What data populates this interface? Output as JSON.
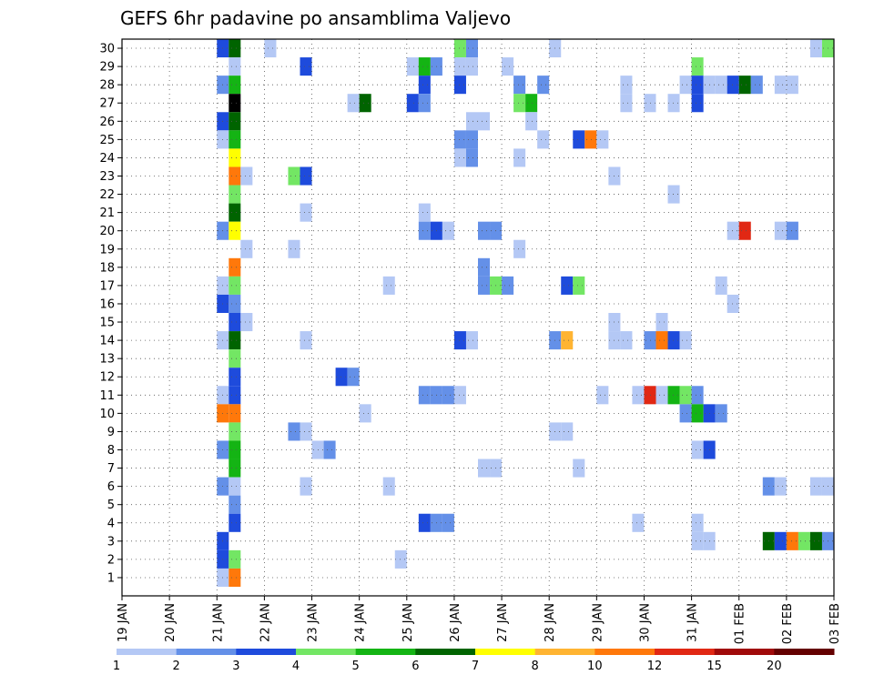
{
  "chart_data": {
    "type": "heatmap",
    "title": "GEFS 6hr padavine po ansamblima Valjevo",
    "xlabel": "",
    "ylabel": "",
    "grid": true,
    "x_tick_labels": [
      "19 JAN",
      "20 JAN",
      "21 JAN",
      "22 JAN",
      "23 JAN",
      "24 JAN",
      "25 JAN",
      "26 JAN",
      "27 JAN",
      "28 JAN",
      "29 JAN",
      "30 JAN",
      "31 JAN",
      "01 FEB",
      "02 FEB",
      "03 FEB"
    ],
    "x_range_days": [
      0,
      15
    ],
    "step_hours": 6,
    "members": [
      1,
      2,
      3,
      4,
      5,
      6,
      7,
      8,
      9,
      10,
      11,
      12,
      13,
      14,
      15,
      16,
      17,
      18,
      19,
      20,
      21,
      22,
      23,
      24,
      25,
      26,
      27,
      28,
      29,
      30
    ],
    "colorbar": {
      "labels": [
        "1",
        "2",
        "3",
        "4",
        "5",
        "6",
        "7",
        "8",
        "10",
        "12",
        "15",
        "20"
      ],
      "colors": [
        "#b4c8f5",
        "#6490e8",
        "#1e4bdc",
        "#73e664",
        "#14b414",
        "#006400",
        "#ffff00",
        "#ffb432",
        "#ff780a",
        "#e12814",
        "#a00a0a",
        "#640000"
      ]
    },
    "cells": [
      [
        30,
        "21 JAN 00",
        3
      ],
      [
        30,
        "21 JAN 06",
        6
      ],
      [
        30,
        "22 JAN 00",
        1
      ],
      [
        30,
        "26 JAN 00",
        4
      ],
      [
        30,
        "26 JAN 06",
        2
      ],
      [
        30,
        "28 JAN 00",
        1
      ],
      [
        30,
        "02 FEB 12",
        1
      ],
      [
        30,
        "02 FEB 18",
        4
      ],
      [
        30,
        "03 FEB 00",
        2
      ],
      [
        29,
        "21 JAN 06",
        1
      ],
      [
        29,
        "22 JAN 18",
        3
      ],
      [
        29,
        "25 JAN 00",
        1
      ],
      [
        29,
        "25 JAN 06",
        5
      ],
      [
        29,
        "25 JAN 12",
        2
      ],
      [
        29,
        "26 JAN 00",
        1
      ],
      [
        29,
        "26 JAN 06",
        1
      ],
      [
        29,
        "27 JAN 00",
        1
      ],
      [
        29,
        "31 JAN 00",
        4
      ],
      [
        28,
        "21 JAN 00",
        2
      ],
      [
        28,
        "21 JAN 06",
        5
      ],
      [
        28,
        "25 JAN 06",
        3
      ],
      [
        28,
        "26 JAN 00",
        3
      ],
      [
        28,
        "27 JAN 06",
        2
      ],
      [
        28,
        "27 JAN 18",
        2
      ],
      [
        28,
        "29 JAN 12",
        1
      ],
      [
        28,
        "30 JAN 18",
        1
      ],
      [
        28,
        "31 JAN 00",
        3
      ],
      [
        28,
        "31 JAN 06",
        1
      ],
      [
        28,
        "31 JAN 12",
        1
      ],
      [
        28,
        "31 JAN 18",
        3
      ],
      [
        28,
        "01 FEB 00",
        6
      ],
      [
        28,
        "01 FEB 06",
        2
      ],
      [
        28,
        "01 FEB 18",
        1
      ],
      [
        28,
        "02 FEB 00",
        1
      ],
      [
        27,
        "21 JAN 06",
        14
      ],
      [
        27,
        "23 JAN 18",
        1
      ],
      [
        27,
        "24 JAN 00",
        6
      ],
      [
        27,
        "25 JAN 00",
        3
      ],
      [
        27,
        "25 JAN 06",
        2
      ],
      [
        27,
        "27 JAN 06",
        4
      ],
      [
        27,
        "27 JAN 12",
        5
      ],
      [
        27,
        "29 JAN 12",
        1
      ],
      [
        27,
        "30 JAN 00",
        1
      ],
      [
        27,
        "30 JAN 12",
        1
      ],
      [
        27,
        "31 JAN 00",
        3
      ],
      [
        26,
        "21 JAN 00",
        3
      ],
      [
        26,
        "21 JAN 06",
        6
      ],
      [
        26,
        "26 JAN 06",
        1
      ],
      [
        26,
        "26 JAN 12",
        1
      ],
      [
        26,
        "27 JAN 12",
        1
      ],
      [
        25,
        "21 JAN 00",
        1
      ],
      [
        25,
        "21 JAN 06",
        5
      ],
      [
        25,
        "26 JAN 00",
        2
      ],
      [
        25,
        "26 JAN 06",
        2
      ],
      [
        25,
        "27 JAN 18",
        1
      ],
      [
        25,
        "28 JAN 12",
        3
      ],
      [
        25,
        "28 JAN 18",
        9
      ],
      [
        25,
        "29 JAN 00",
        1
      ],
      [
        24,
        "21 JAN 06",
        7
      ],
      [
        24,
        "26 JAN 00",
        1
      ],
      [
        24,
        "26 JAN 06",
        2
      ],
      [
        24,
        "27 JAN 06",
        1
      ],
      [
        23,
        "21 JAN 06",
        9
      ],
      [
        23,
        "21 JAN 12",
        1
      ],
      [
        23,
        "22 JAN 12",
        4
      ],
      [
        23,
        "22 JAN 18",
        3
      ],
      [
        23,
        "29 JAN 06",
        1
      ],
      [
        22,
        "21 JAN 06",
        4
      ],
      [
        22,
        "30 JAN 12",
        1
      ],
      [
        22,
        "03 FEB 00",
        1
      ],
      [
        21,
        "21 JAN 06",
        6
      ],
      [
        21,
        "22 JAN 18",
        1
      ],
      [
        21,
        "25 JAN 06",
        1
      ],
      [
        20,
        "21 JAN 00",
        2
      ],
      [
        20,
        "21 JAN 06",
        7
      ],
      [
        20,
        "25 JAN 06",
        2
      ],
      [
        20,
        "25 JAN 12",
        3
      ],
      [
        20,
        "25 JAN 18",
        1
      ],
      [
        20,
        "26 JAN 12",
        2
      ],
      [
        20,
        "26 JAN 18",
        2
      ],
      [
        20,
        "31 JAN 18",
        1
      ],
      [
        20,
        "01 FEB 00",
        10
      ],
      [
        20,
        "01 FEB 18",
        1
      ],
      [
        20,
        "02 FEB 00",
        2
      ],
      [
        19,
        "21 JAN 12",
        1
      ],
      [
        19,
        "22 JAN 12",
        1
      ],
      [
        19,
        "27 JAN 06",
        1
      ],
      [
        18,
        "21 JAN 06",
        9
      ],
      [
        18,
        "26 JAN 12",
        2
      ],
      [
        17,
        "21 JAN 00",
        1
      ],
      [
        17,
        "21 JAN 06",
        4
      ],
      [
        17,
        "24 JAN 12",
        1
      ],
      [
        17,
        "26 JAN 12",
        2
      ],
      [
        17,
        "26 JAN 18",
        4
      ],
      [
        17,
        "27 JAN 00",
        2
      ],
      [
        17,
        "28 JAN 06",
        3
      ],
      [
        17,
        "28 JAN 12",
        4
      ],
      [
        17,
        "31 JAN 12",
        1
      ],
      [
        16,
        "21 JAN 00",
        3
      ],
      [
        16,
        "21 JAN 06",
        2
      ],
      [
        16,
        "31 JAN 18",
        1
      ],
      [
        15,
        "21 JAN 06",
        3
      ],
      [
        15,
        "21 JAN 12",
        1
      ],
      [
        15,
        "29 JAN 06",
        1
      ],
      [
        15,
        "30 JAN 06",
        1
      ],
      [
        14,
        "21 JAN 00",
        1
      ],
      [
        14,
        "21 JAN 06",
        6
      ],
      [
        14,
        "22 JAN 18",
        1
      ],
      [
        14,
        "26 JAN 00",
        3
      ],
      [
        14,
        "26 JAN 06",
        1
      ],
      [
        14,
        "28 JAN 00",
        2
      ],
      [
        14,
        "28 JAN 06",
        8
      ],
      [
        14,
        "29 JAN 06",
        1
      ],
      [
        14,
        "29 JAN 12",
        1
      ],
      [
        14,
        "30 JAN 00",
        2
      ],
      [
        14,
        "30 JAN 06",
        9
      ],
      [
        14,
        "30 JAN 12",
        3
      ],
      [
        14,
        "30 JAN 18",
        1
      ],
      [
        13,
        "21 JAN 06",
        4
      ],
      [
        12,
        "21 JAN 06",
        3
      ],
      [
        12,
        "23 JAN 12",
        3
      ],
      [
        12,
        "23 JAN 18",
        2
      ],
      [
        11,
        "21 JAN 00",
        1
      ],
      [
        11,
        "21 JAN 06",
        3
      ],
      [
        11,
        "25 JAN 06",
        2
      ],
      [
        11,
        "25 JAN 12",
        2
      ],
      [
        11,
        "25 JAN 18",
        2
      ],
      [
        11,
        "26 JAN 00",
        1
      ],
      [
        11,
        "29 JAN 00",
        1
      ],
      [
        11,
        "29 JAN 18",
        1
      ],
      [
        11,
        "30 JAN 00",
        10
      ],
      [
        11,
        "30 JAN 06",
        1
      ],
      [
        11,
        "30 JAN 12",
        5
      ],
      [
        11,
        "30 JAN 18",
        4
      ],
      [
        11,
        "31 JAN 00",
        2
      ],
      [
        10,
        "21 JAN 00",
        9
      ],
      [
        10,
        "21 JAN 06",
        9
      ],
      [
        10,
        "24 JAN 00",
        1
      ],
      [
        10,
        "30 JAN 18",
        2
      ],
      [
        10,
        "31 JAN 00",
        5
      ],
      [
        10,
        "31 JAN 06",
        3
      ],
      [
        10,
        "31 JAN 12",
        2
      ],
      [
        9,
        "21 JAN 06",
        4
      ],
      [
        9,
        "22 JAN 12",
        2
      ],
      [
        9,
        "22 JAN 18",
        1
      ],
      [
        9,
        "28 JAN 00",
        1
      ],
      [
        9,
        "28 JAN 06",
        1
      ],
      [
        8,
        "21 JAN 00",
        2
      ],
      [
        8,
        "21 JAN 06",
        5
      ],
      [
        8,
        "23 JAN 00",
        1
      ],
      [
        8,
        "23 JAN 06",
        2
      ],
      [
        8,
        "31 JAN 00",
        1
      ],
      [
        8,
        "31 JAN 06",
        3
      ],
      [
        7,
        "21 JAN 06",
        5
      ],
      [
        7,
        "26 JAN 12",
        1
      ],
      [
        7,
        "26 JAN 18",
        1
      ],
      [
        7,
        "28 JAN 12",
        1
      ],
      [
        6,
        "21 JAN 00",
        2
      ],
      [
        6,
        "21 JAN 06",
        1
      ],
      [
        6,
        "22 JAN 18",
        1
      ],
      [
        6,
        "24 JAN 12",
        1
      ],
      [
        6,
        "01 FEB 12",
        2
      ],
      [
        6,
        "01 FEB 18",
        1
      ],
      [
        6,
        "02 FEB 12",
        1
      ],
      [
        6,
        "02 FEB 18",
        1
      ],
      [
        6,
        "03 FEB 00",
        3
      ],
      [
        5,
        "21 JAN 06",
        2
      ],
      [
        4,
        "21 JAN 06",
        3
      ],
      [
        4,
        "25 JAN 06",
        3
      ],
      [
        4,
        "25 JAN 12",
        2
      ],
      [
        4,
        "25 JAN 18",
        2
      ],
      [
        4,
        "29 JAN 18",
        1
      ],
      [
        4,
        "31 JAN 00",
        1
      ],
      [
        3,
        "21 JAN 00",
        3
      ],
      [
        3,
        "31 JAN 00",
        1
      ],
      [
        3,
        "31 JAN 06",
        1
      ],
      [
        3,
        "01 FEB 12",
        6
      ],
      [
        3,
        "01 FEB 18",
        3
      ],
      [
        3,
        "02 FEB 00",
        9
      ],
      [
        3,
        "02 FEB 06",
        4
      ],
      [
        3,
        "02 FEB 12",
        6
      ],
      [
        3,
        "02 FEB 18",
        2
      ],
      [
        2,
        "21 JAN 00",
        3
      ],
      [
        2,
        "21 JAN 06",
        4
      ],
      [
        2,
        "24 JAN 18",
        1
      ],
      [
        1,
        "21 JAN 00",
        1
      ],
      [
        1,
        "21 JAN 06",
        9
      ],
      [
        1,
        "03 FEB 00",
        1
      ]
    ]
  }
}
